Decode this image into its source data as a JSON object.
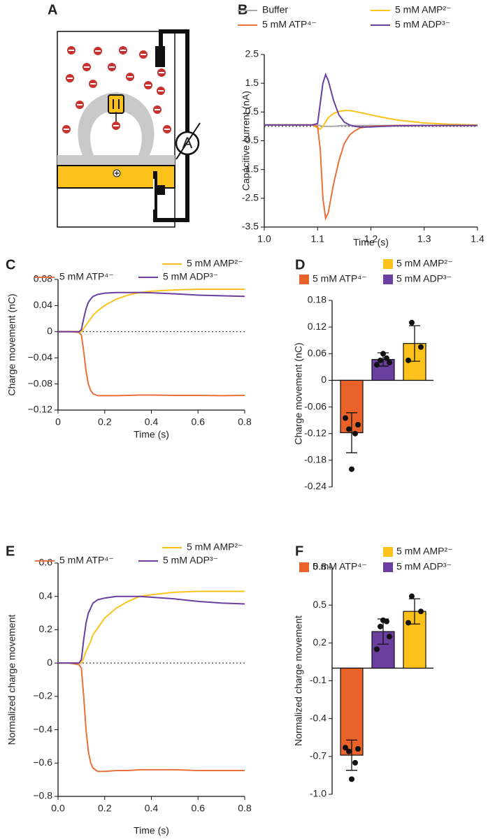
{
  "diagram": {
    "panel": "A",
    "meter": "A"
  },
  "chart_data": [
    {
      "type": "line",
      "panel": "B",
      "x_label": "Time (s)",
      "y_label": "Capacitive current (nA)",
      "xlim": [
        1.0,
        1.4
      ],
      "xticks": [
        {
          "value": 1.0,
          "label": "1.0"
        },
        1.1,
        1.2,
        1.3,
        1.4
      ],
      "ylim": [
        -3.5,
        2.5
      ],
      "yticks": [
        -3.5,
        -2.5,
        -1.5,
        -0.5,
        0.5,
        1.5,
        2.5
      ],
      "x": [
        1.0,
        1.05,
        1.09,
        1.1,
        1.105,
        1.11,
        1.115,
        1.12,
        1.13,
        1.14,
        1.15,
        1.16,
        1.17,
        1.18,
        1.2,
        1.22,
        1.25,
        1.3,
        1.35,
        1.4
      ],
      "series": [
        {
          "name": "Buffer",
          "color": "#aaaaaa",
          "values": [
            0.05,
            0.05,
            0.05,
            0.05,
            0.03,
            0,
            0,
            0,
            0,
            0.02,
            0.03,
            0.03,
            0.03,
            0.03,
            0.03,
            0.03,
            0.03,
            0.03,
            0.03,
            0.03
          ]
        },
        {
          "name": "5 mM AMP²⁻",
          "color": "#fcc21b",
          "values": [
            0.05,
            0.05,
            0.05,
            -0.05,
            -0.1,
            0,
            0.15,
            0.3,
            0.45,
            0.52,
            0.55,
            0.55,
            0.52,
            0.48,
            0.4,
            0.32,
            0.22,
            0.12,
            0.07,
            0.05
          ]
        },
        {
          "name": "5 mM ATP⁴⁻",
          "color": "#e8703a",
          "values": [
            0.05,
            0.05,
            0.05,
            0,
            -0.8,
            -2.5,
            -3.2,
            -3.0,
            -2.0,
            -1.2,
            -0.6,
            -0.3,
            -0.15,
            -0.05,
            0,
            0.02,
            0.03,
            0.03,
            0.03,
            0.03
          ]
        },
        {
          "name": "5 mM ADP³⁻",
          "color": "#6a3fa0",
          "values": [
            0.05,
            0.05,
            0.05,
            0.1,
            0.8,
            1.5,
            1.8,
            1.6,
            0.9,
            0.4,
            0.15,
            0.05,
            0,
            -0.02,
            -0.02,
            0,
            0.02,
            0.03,
            0.03,
            0.03
          ]
        }
      ]
    },
    {
      "type": "line",
      "panel": "C",
      "x_label": "Time (s)",
      "y_label": "Charge movement (nC)",
      "xlim": [
        0,
        0.8
      ],
      "xticks": [
        0,
        0.2,
        0.4,
        0.6,
        0.8
      ],
      "ylim": [
        -0.12,
        0.08
      ],
      "yticks": [
        {
          "value": -0.12,
          "label": "−0.12"
        },
        {
          "value": -0.08,
          "label": "−0.08"
        },
        {
          "value": -0.04,
          "label": "−0.04"
        },
        0,
        0.04,
        0.08
      ],
      "x": [
        0,
        0.05,
        0.09,
        0.1,
        0.11,
        0.12,
        0.13,
        0.14,
        0.15,
        0.17,
        0.2,
        0.25,
        0.3,
        0.35,
        0.4,
        0.5,
        0.6,
        0.7,
        0.8
      ],
      "series": [
        {
          "name": "5 mM AMP²⁻",
          "color": "#fcc21b",
          "values": [
            0,
            0,
            0,
            0,
            0.005,
            0.01,
            0.015,
            0.02,
            0.025,
            0.032,
            0.04,
            0.05,
            0.056,
            0.06,
            0.062,
            0.064,
            0.065,
            0.065,
            0.065
          ]
        },
        {
          "name": "5 mM ATP⁴⁻",
          "color": "#e8703a",
          "values": [
            0,
            0,
            -0.001,
            -0.005,
            -0.03,
            -0.06,
            -0.08,
            -0.09,
            -0.095,
            -0.098,
            -0.098,
            -0.098,
            -0.0975,
            -0.097,
            -0.097,
            -0.0975,
            -0.0975,
            -0.098,
            -0.0975
          ]
        },
        {
          "name": "5 mM ADP³⁻",
          "color": "#6a3fa0",
          "values": [
            0,
            0,
            0,
            0.003,
            0.02,
            0.035,
            0.045,
            0.05,
            0.054,
            0.057,
            0.059,
            0.06,
            0.06,
            0.06,
            0.0595,
            0.058,
            0.056,
            0.055,
            0.054
          ]
        }
      ]
    },
    {
      "type": "bar",
      "panel": "D",
      "y_label": "Charge movement (nC)",
      "ylim": [
        -0.24,
        0.18
      ],
      "yticks": [
        {
          "value": -0.24,
          "label": "-0.24"
        },
        {
          "value": -0.18,
          "label": "-0.18"
        },
        {
          "value": -0.12,
          "label": "-0.12"
        },
        {
          "value": -0.06,
          "label": "-0.06"
        },
        0,
        0.06,
        0.12,
        0.18
      ],
      "series": [
        {
          "name": "5 mM ATP⁴⁻",
          "color": "#e8622a",
          "values": [
            -0.118
          ],
          "errors": [
            0.045
          ],
          "points": [
            -0.085,
            -0.1,
            -0.11,
            -0.12,
            -0.2
          ]
        },
        {
          "name": "5 mM ADP³⁻",
          "color": "#6a3fa0",
          "values": [
            0.047
          ],
          "errors": [
            0.015
          ],
          "points": [
            0.035,
            0.04,
            0.045,
            0.05,
            0.06
          ]
        },
        {
          "name": "5 mM AMP²⁻",
          "color": "#fcc21b",
          "values": [
            0.083
          ],
          "errors": [
            0.04
          ],
          "points": [
            0.045,
            0.075,
            0.13
          ]
        }
      ]
    },
    {
      "type": "line",
      "panel": "E",
      "x_label": "Time (s)",
      "y_label": "Normalized charge movement",
      "xlim": [
        0,
        0.8
      ],
      "xticks": [
        {
          "value": 0,
          "label": "0.0"
        },
        0.2,
        0.4,
        0.6,
        0.8
      ],
      "ylim": [
        -0.8,
        0.6
      ],
      "yticks": [
        {
          "value": -0.8,
          "label": "−0.8"
        },
        {
          "value": -0.6,
          "label": "−0.6"
        },
        {
          "value": -0.4,
          "label": "−0.4"
        },
        {
          "value": -0.2,
          "label": "−0.2"
        },
        0,
        0.2,
        0.4,
        0.6
      ],
      "x": [
        0,
        0.05,
        0.09,
        0.1,
        0.11,
        0.12,
        0.13,
        0.14,
        0.15,
        0.17,
        0.2,
        0.25,
        0.3,
        0.35,
        0.4,
        0.5,
        0.6,
        0.7,
        0.8
      ],
      "series": [
        {
          "name": "5 mM AMP²⁻",
          "color": "#fcc21b",
          "values": [
            0,
            0,
            0,
            0,
            0.03,
            0.07,
            0.1,
            0.13,
            0.17,
            0.21,
            0.27,
            0.33,
            0.37,
            0.4,
            0.41,
            0.425,
            0.43,
            0.43,
            0.43
          ]
        },
        {
          "name": "5 mM ATP⁴⁻",
          "color": "#e8703a",
          "values": [
            0,
            0,
            -0.01,
            -0.03,
            -0.2,
            -0.4,
            -0.53,
            -0.6,
            -0.63,
            -0.65,
            -0.65,
            -0.645,
            -0.645,
            -0.64,
            -0.64,
            -0.64,
            -0.645,
            -0.645,
            -0.645
          ]
        },
        {
          "name": "5 mM ADP³⁻",
          "color": "#6a3fa0",
          "values": [
            0,
            0,
            0,
            0.02,
            0.14,
            0.24,
            0.3,
            0.33,
            0.36,
            0.38,
            0.39,
            0.4,
            0.4,
            0.4,
            0.395,
            0.385,
            0.37,
            0.36,
            0.355
          ]
        }
      ]
    },
    {
      "type": "bar",
      "panel": "F",
      "y_label": "Normalized charge movement",
      "ylim": [
        -1.0,
        0.8
      ],
      "yticks": [
        {
          "value": -1.0,
          "label": "-1.0"
        },
        -0.7,
        -0.4,
        -0.1,
        0.2,
        0.5,
        0.8
      ],
      "series": [
        {
          "name": "5 mM ATP⁴⁻",
          "color": "#e8622a",
          "values": [
            -0.69
          ],
          "errors": [
            0.12
          ],
          "points": [
            -0.63,
            -0.64,
            -0.66,
            -0.75,
            -0.88
          ]
        },
        {
          "name": "5 mM ADP³⁻",
          "color": "#6a3fa0",
          "values": [
            0.29
          ],
          "errors": [
            0.1
          ],
          "points": [
            0.15,
            0.25,
            0.33,
            0.37,
            0.38
          ]
        },
        {
          "name": "5 mM AMP²⁻",
          "color": "#fcc21b",
          "values": [
            0.45
          ],
          "errors": [
            0.1
          ],
          "points": [
            0.36,
            0.45,
            0.57
          ]
        }
      ]
    }
  ]
}
